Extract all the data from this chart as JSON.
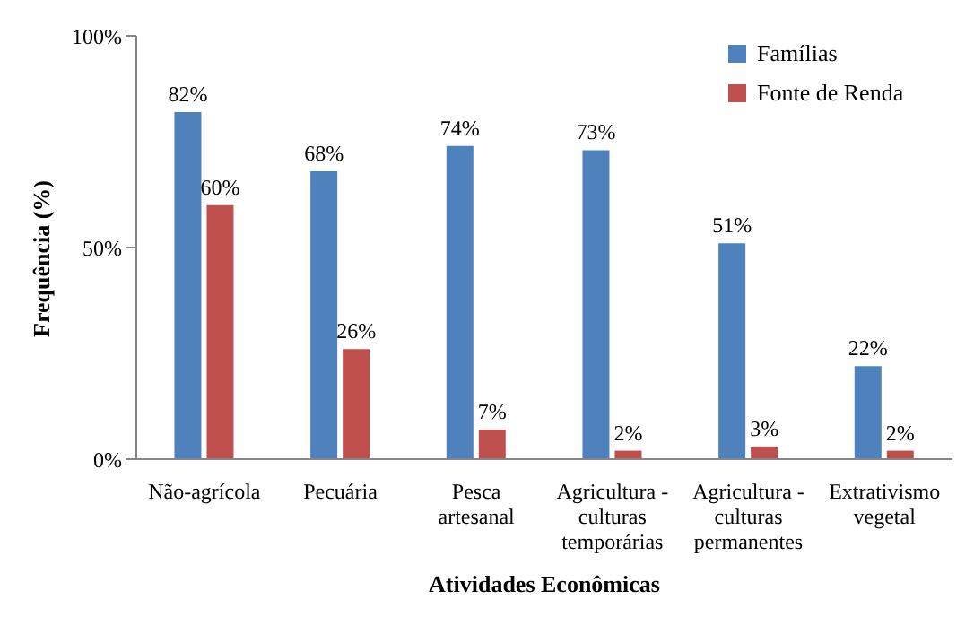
{
  "chart_data": {
    "type": "bar",
    "xlabel": "Atividades Econômicas",
    "ylabel": "Frequência (%)",
    "categories": [
      "Não-agrícola",
      "Pecuária",
      "Pesca artesanal",
      "Agricultura - culturas temporárias",
      "Agricultura - culturas permanentes",
      "Extrativismo vegetal"
    ],
    "series": [
      {
        "name": "Famílias",
        "color": "#4f81bd",
        "values": [
          82,
          68,
          74,
          73,
          51,
          22
        ],
        "value_labels": [
          "82%",
          "68%",
          "74%",
          "73%",
          "51%",
          "22%"
        ]
      },
      {
        "name": "Fonte de Renda",
        "color": "#c0504d",
        "values": [
          60,
          26,
          7,
          2,
          3,
          2
        ],
        "value_labels": [
          "60%",
          "26%",
          "7%",
          "2%",
          "3%",
          "2%"
        ]
      }
    ],
    "ylim": [
      0,
      100
    ],
    "yticks": [
      {
        "value": 0,
        "label": "0%"
      },
      {
        "value": 50,
        "label": "50%"
      },
      {
        "value": 100,
        "label": "100%"
      }
    ],
    "grid": false,
    "legend": "top right"
  }
}
